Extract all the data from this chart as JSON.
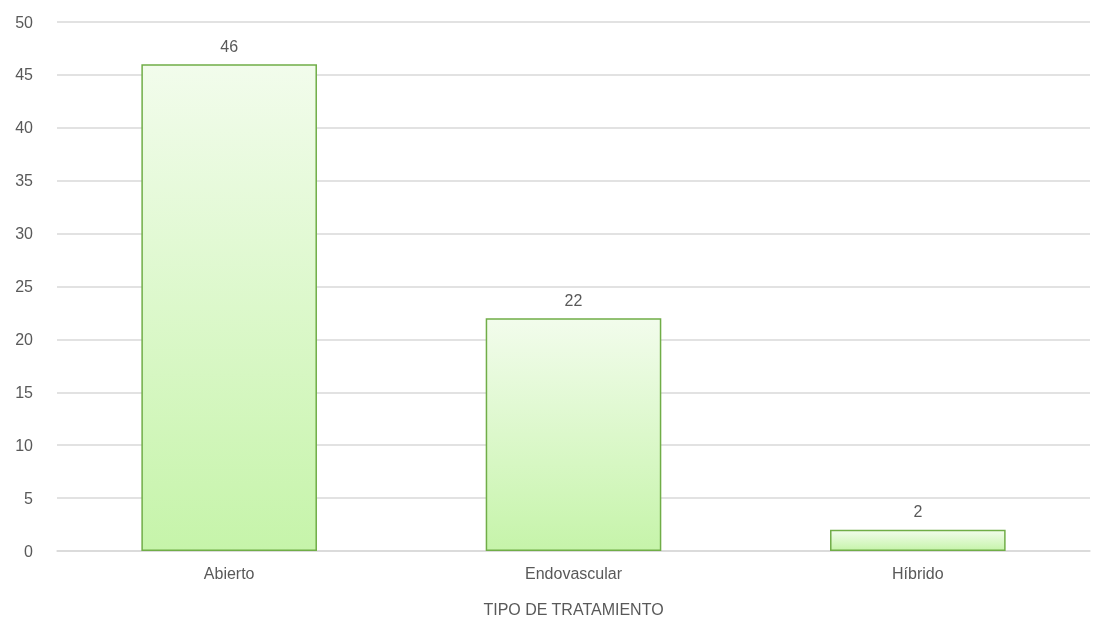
{
  "chart_data": {
    "type": "bar",
    "xlabel": "TIPO DE TRATAMIENTO",
    "categories": [
      "Abierto",
      "Endovascular",
      "Híbrido"
    ],
    "values": [
      46,
      22,
      2
    ],
    "color": "#70ad47",
    "ylim": [
      0,
      50
    ],
    "yticks": [
      0,
      5,
      10,
      15,
      20,
      25,
      30,
      35,
      40,
      45,
      50
    ],
    "grid": "y",
    "data_labels": true
  }
}
